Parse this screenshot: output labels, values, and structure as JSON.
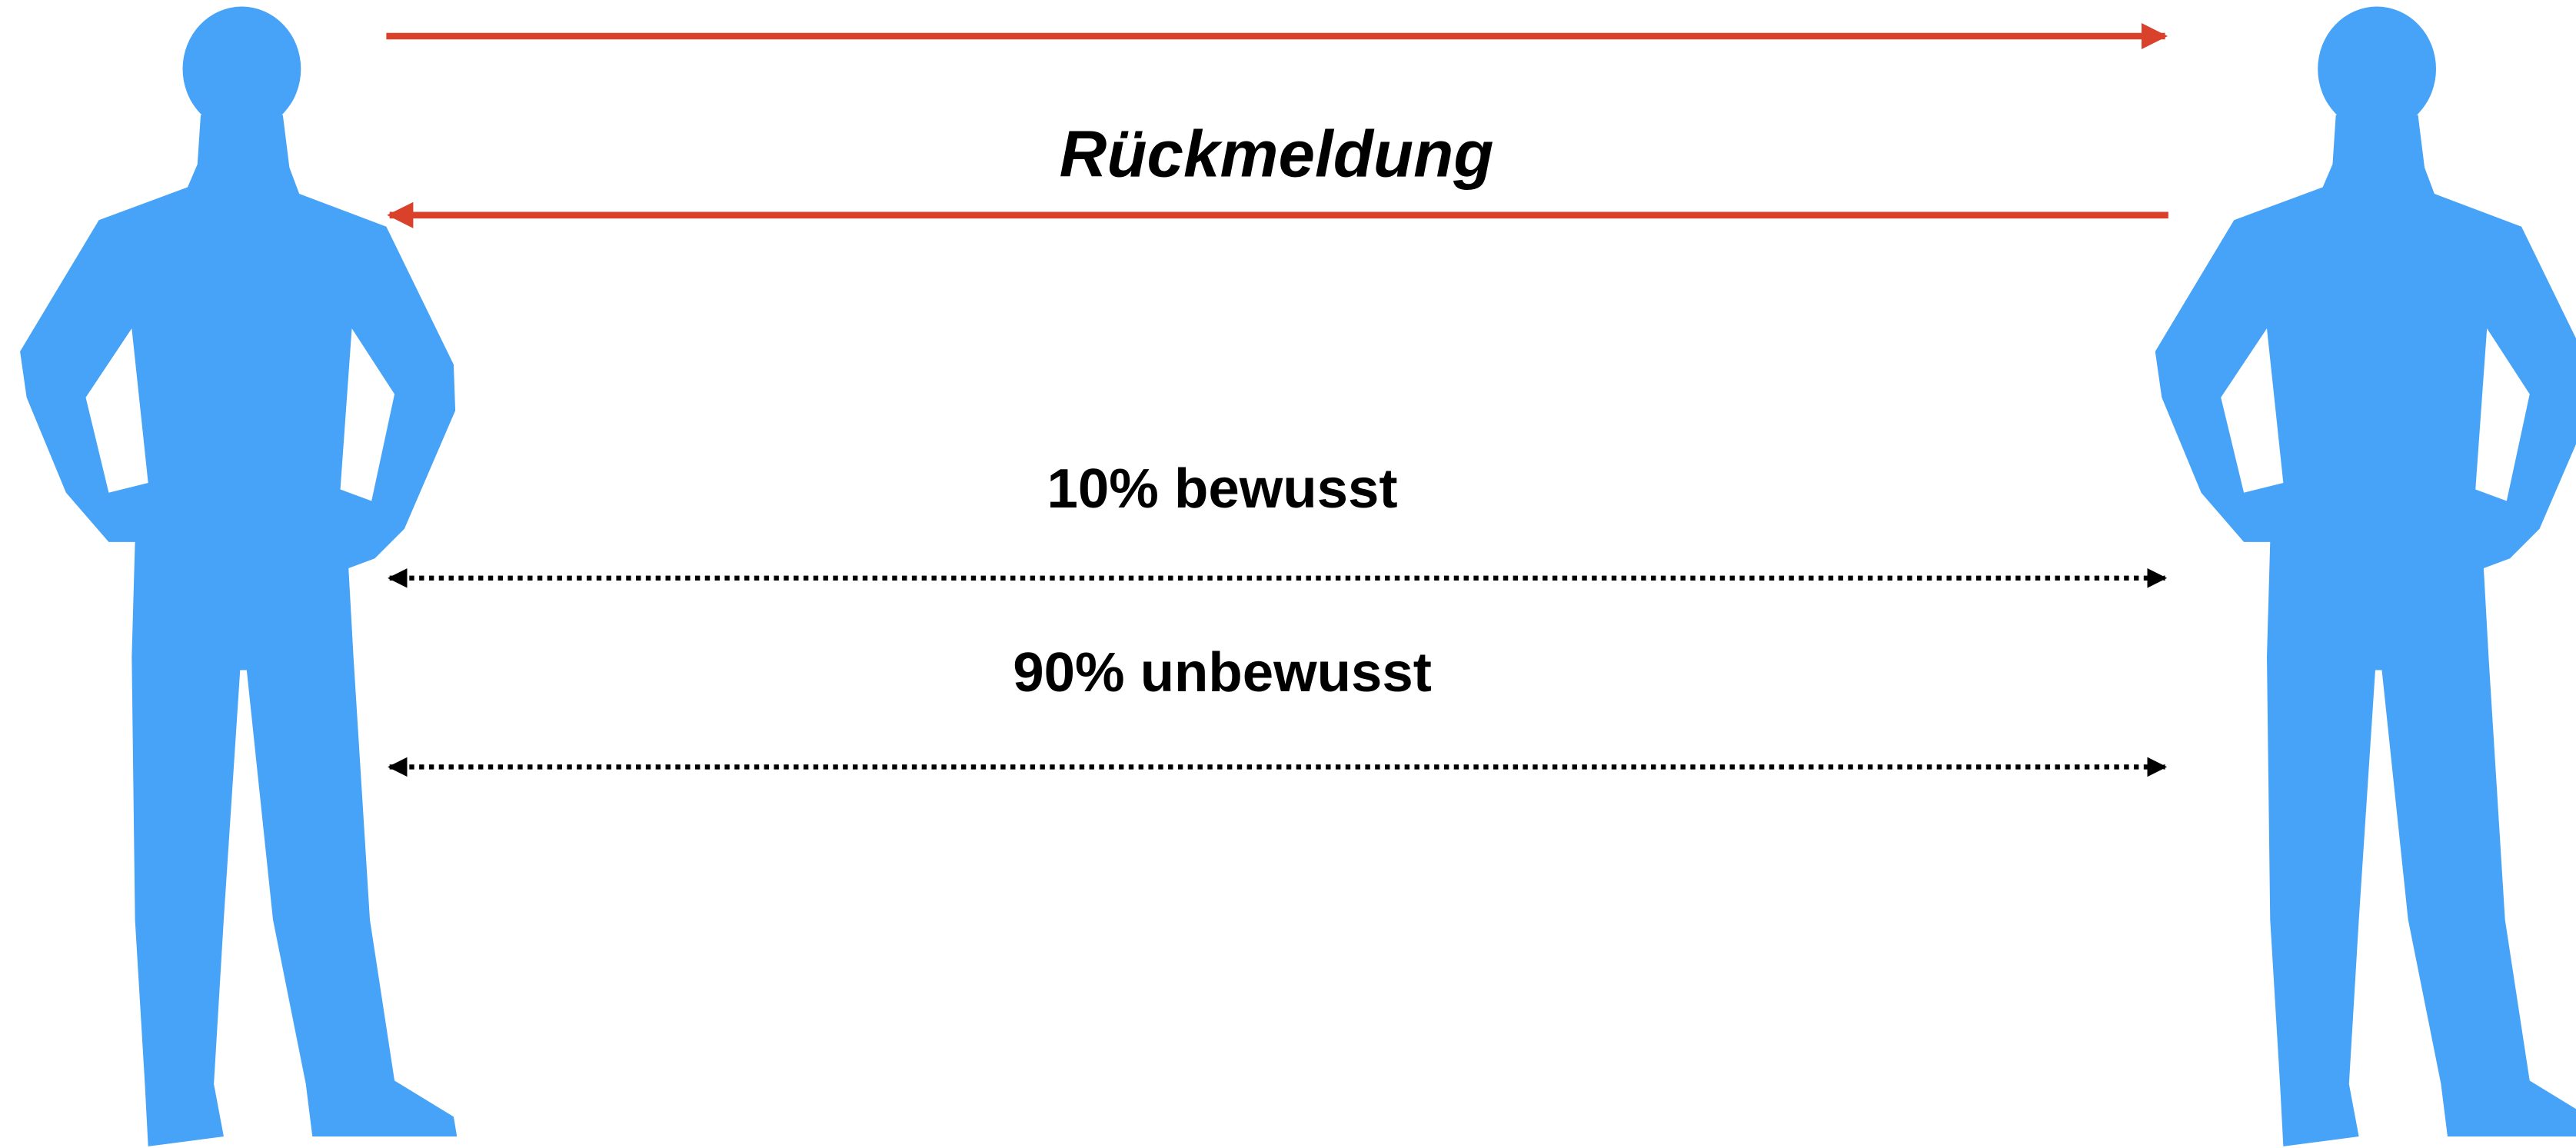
{
  "feedback_label": "Rückmeldung",
  "conscious_label": "10% bewusst",
  "unconscious_label": "90% unbewusst"
}
